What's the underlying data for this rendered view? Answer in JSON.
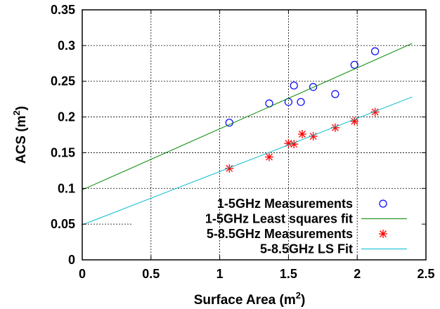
{
  "chart_data": {
    "type": "scatter",
    "xlabel": "Surface Area (m",
    "xlabel_sup": "2",
    "xlabel_end": ")",
    "ylabel": "ACS (m",
    "ylabel_sup": "2",
    "ylabel_end": ")",
    "xlim": [
      0,
      2.5
    ],
    "ylim": [
      0,
      0.35
    ],
    "xticks": [
      0,
      0.5,
      1,
      1.5,
      2,
      2.5
    ],
    "xtick_labels": [
      "0",
      "0.5",
      "1",
      "1.5",
      "2",
      "2.5"
    ],
    "yticks": [
      0,
      0.05,
      0.1,
      0.15,
      0.2,
      0.25,
      0.3,
      0.35
    ],
    "ytick_labels": [
      "0",
      "0.05",
      "0.1",
      "0.15",
      "0.2",
      "0.25",
      "0.3",
      "0.35"
    ],
    "grid": true,
    "legend_position": "bottom-right",
    "series": [
      {
        "name": "1-5GHz Measurements",
        "kind": "points",
        "marker": "circle",
        "color": "#0000ff",
        "x": [
          1.07,
          1.36,
          1.5,
          1.54,
          1.59,
          1.68,
          1.84,
          1.98,
          2.13
        ],
        "y": [
          0.192,
          0.219,
          0.221,
          0.244,
          0.221,
          0.242,
          0.232,
          0.273,
          0.292
        ]
      },
      {
        "name": "1-5GHz Least squares fit",
        "kind": "line",
        "color": "#008800",
        "x": [
          0,
          2.4
        ],
        "y": [
          0.098,
          0.303
        ]
      },
      {
        "name": "5-8.5GHz Measurements",
        "kind": "points",
        "marker": "star",
        "color": "#ff0000",
        "x": [
          1.07,
          1.36,
          1.5,
          1.54,
          1.6,
          1.68,
          1.84,
          1.98,
          2.13
        ],
        "y": [
          0.128,
          0.144,
          0.163,
          0.162,
          0.176,
          0.173,
          0.185,
          0.194,
          0.207
        ]
      },
      {
        "name": "5-8.5GHz LS Fit",
        "kind": "line",
        "color": "#00bbcc",
        "x": [
          0,
          2.4
        ],
        "y": [
          0.049,
          0.228
        ]
      }
    ]
  }
}
